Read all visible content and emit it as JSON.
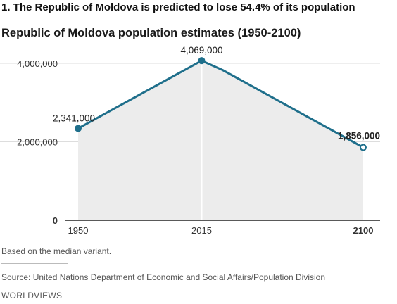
{
  "headline": "1. The Republic of Moldova is predicted to lose 54.4% of its population",
  "chart_data": {
    "type": "area",
    "title": "Republic of Moldova population estimates (1950-2100)",
    "xlabel": "",
    "ylabel": "",
    "x": [
      1950,
      2015,
      2026,
      2100
    ],
    "series": [
      {
        "values": [
          2341000,
          4069000,
          3830000,
          1856000
        ]
      }
    ],
    "ylim": [
      0,
      4000000
    ],
    "y_ticks": [
      "0",
      "2,000,000",
      "4,000,000"
    ],
    "x_ticks": [
      "1950",
      "2015",
      "2100"
    ],
    "data_labels": [
      {
        "x": 1950,
        "y": 2341000,
        "text": "2,341,000"
      },
      {
        "x": 2015,
        "y": 4069000,
        "text": "4,069,000"
      },
      {
        "x": 2100,
        "y": 1856000,
        "text": "1,856,000"
      }
    ],
    "grid": true,
    "colors": {
      "line": "#1f6f8b",
      "area": "#ececec",
      "grid": "#dddddd",
      "baseline": "#222222"
    }
  },
  "note": "Based on the median variant.",
  "source": "Source: United Nations Department of Economic and Social Affairs/Population Division",
  "brand": "WORLDVIEWS"
}
